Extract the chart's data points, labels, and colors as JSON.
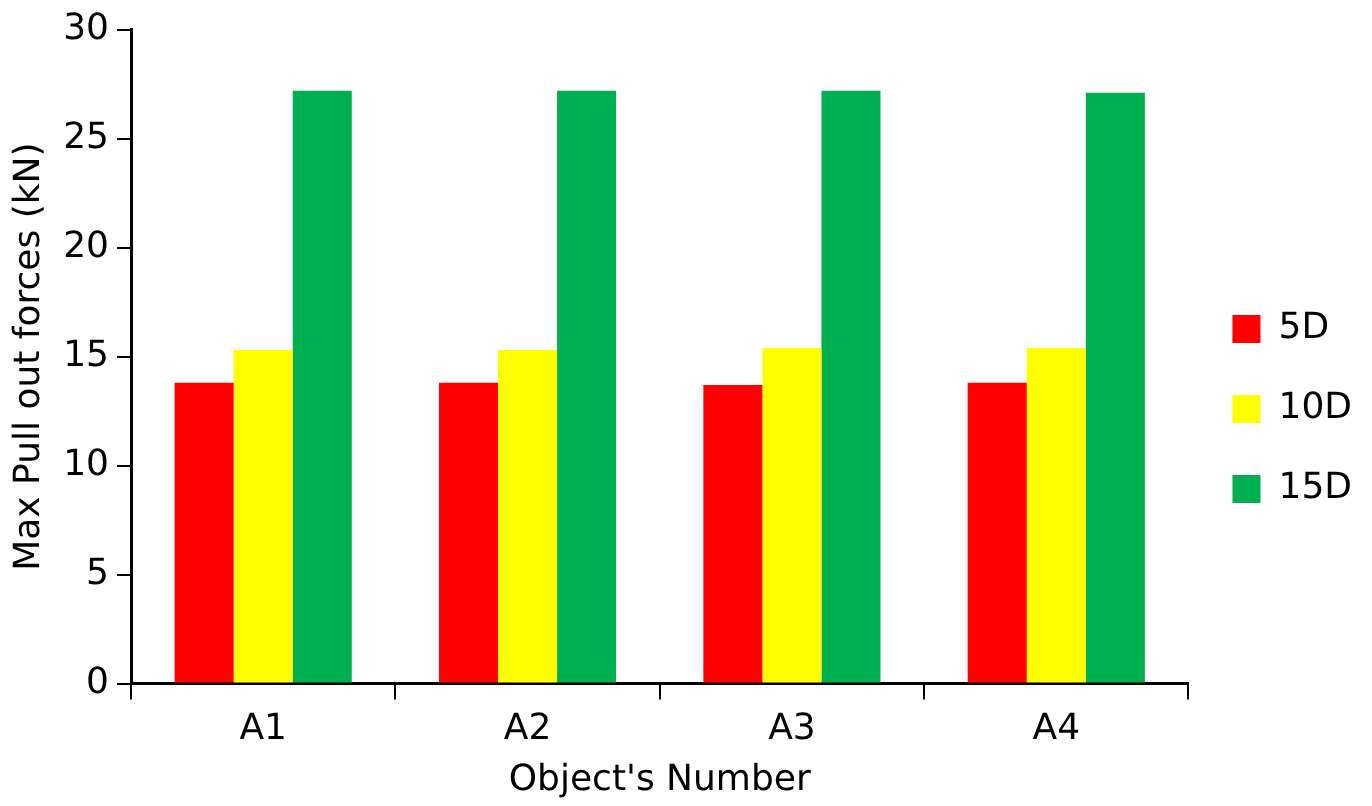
{
  "chart_data": {
    "type": "bar",
    "xlabel": "Object's Number",
    "ylabel": "Max Pull out forces (kN)",
    "categories": [
      "A1",
      "A2",
      "A3",
      "A4"
    ],
    "series": [
      {
        "name": "5D",
        "color": "#ff0000",
        "values": [
          13.8,
          13.8,
          13.7,
          13.8
        ]
      },
      {
        "name": "10D",
        "color": "#ffff00",
        "values": [
          15.3,
          15.3,
          15.4,
          15.4
        ]
      },
      {
        "name": "15D",
        "color": "#00b050",
        "values": [
          27.2,
          27.2,
          27.2,
          27.1
        ]
      }
    ],
    "ylim": [
      0,
      30
    ],
    "yticks": [
      0,
      5,
      10,
      15,
      20,
      25,
      30
    ],
    "grid": false,
    "legend": "right"
  }
}
